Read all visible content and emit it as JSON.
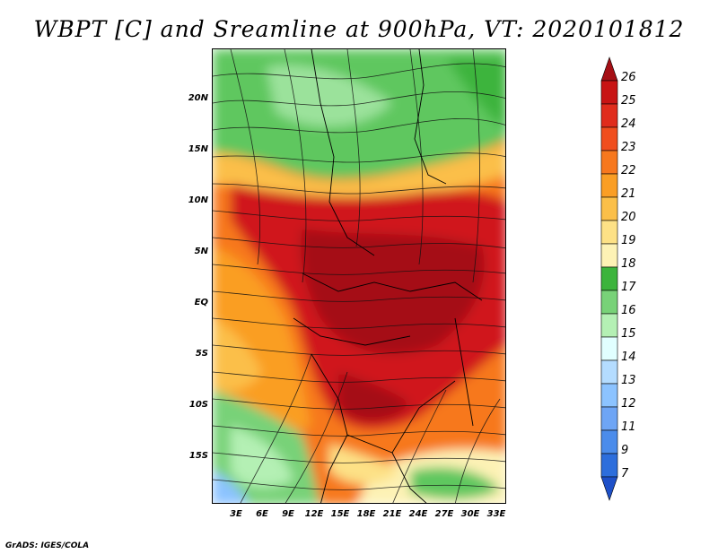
{
  "title": "WBPT [C] and Sreamline at 900hPa, VT: 2020101812",
  "credit": "GrADS: IGES/COLA",
  "lat_labels": [
    "20N",
    "15N",
    "10N",
    "5N",
    "EQ",
    "5S",
    "10S",
    "15S"
  ],
  "lon_labels": [
    "3E",
    "6E",
    "9E",
    "12E",
    "15E",
    "18E",
    "21E",
    "24E",
    "27E",
    "30E",
    "33E"
  ],
  "colorbar": {
    "labels": [
      "26",
      "25",
      "24",
      "23",
      "22",
      "21",
      "20",
      "19",
      "18",
      "17",
      "16",
      "15",
      "14",
      "13",
      "12",
      "11",
      "9",
      "7"
    ],
    "colors": [
      "#a50f15",
      "#c81414",
      "#e02c1c",
      "#f04e1e",
      "#f7781e",
      "#fa9e24",
      "#fbbf48",
      "#fde186",
      "#fdf2b5",
      "#3cb43c",
      "#78d278",
      "#b4f0b4",
      "#e1ffff",
      "#b4dcff",
      "#8cc3ff",
      "#6ea5f5",
      "#4b8ceb",
      "#2d6edc",
      "#1e50c8"
    ]
  }
}
